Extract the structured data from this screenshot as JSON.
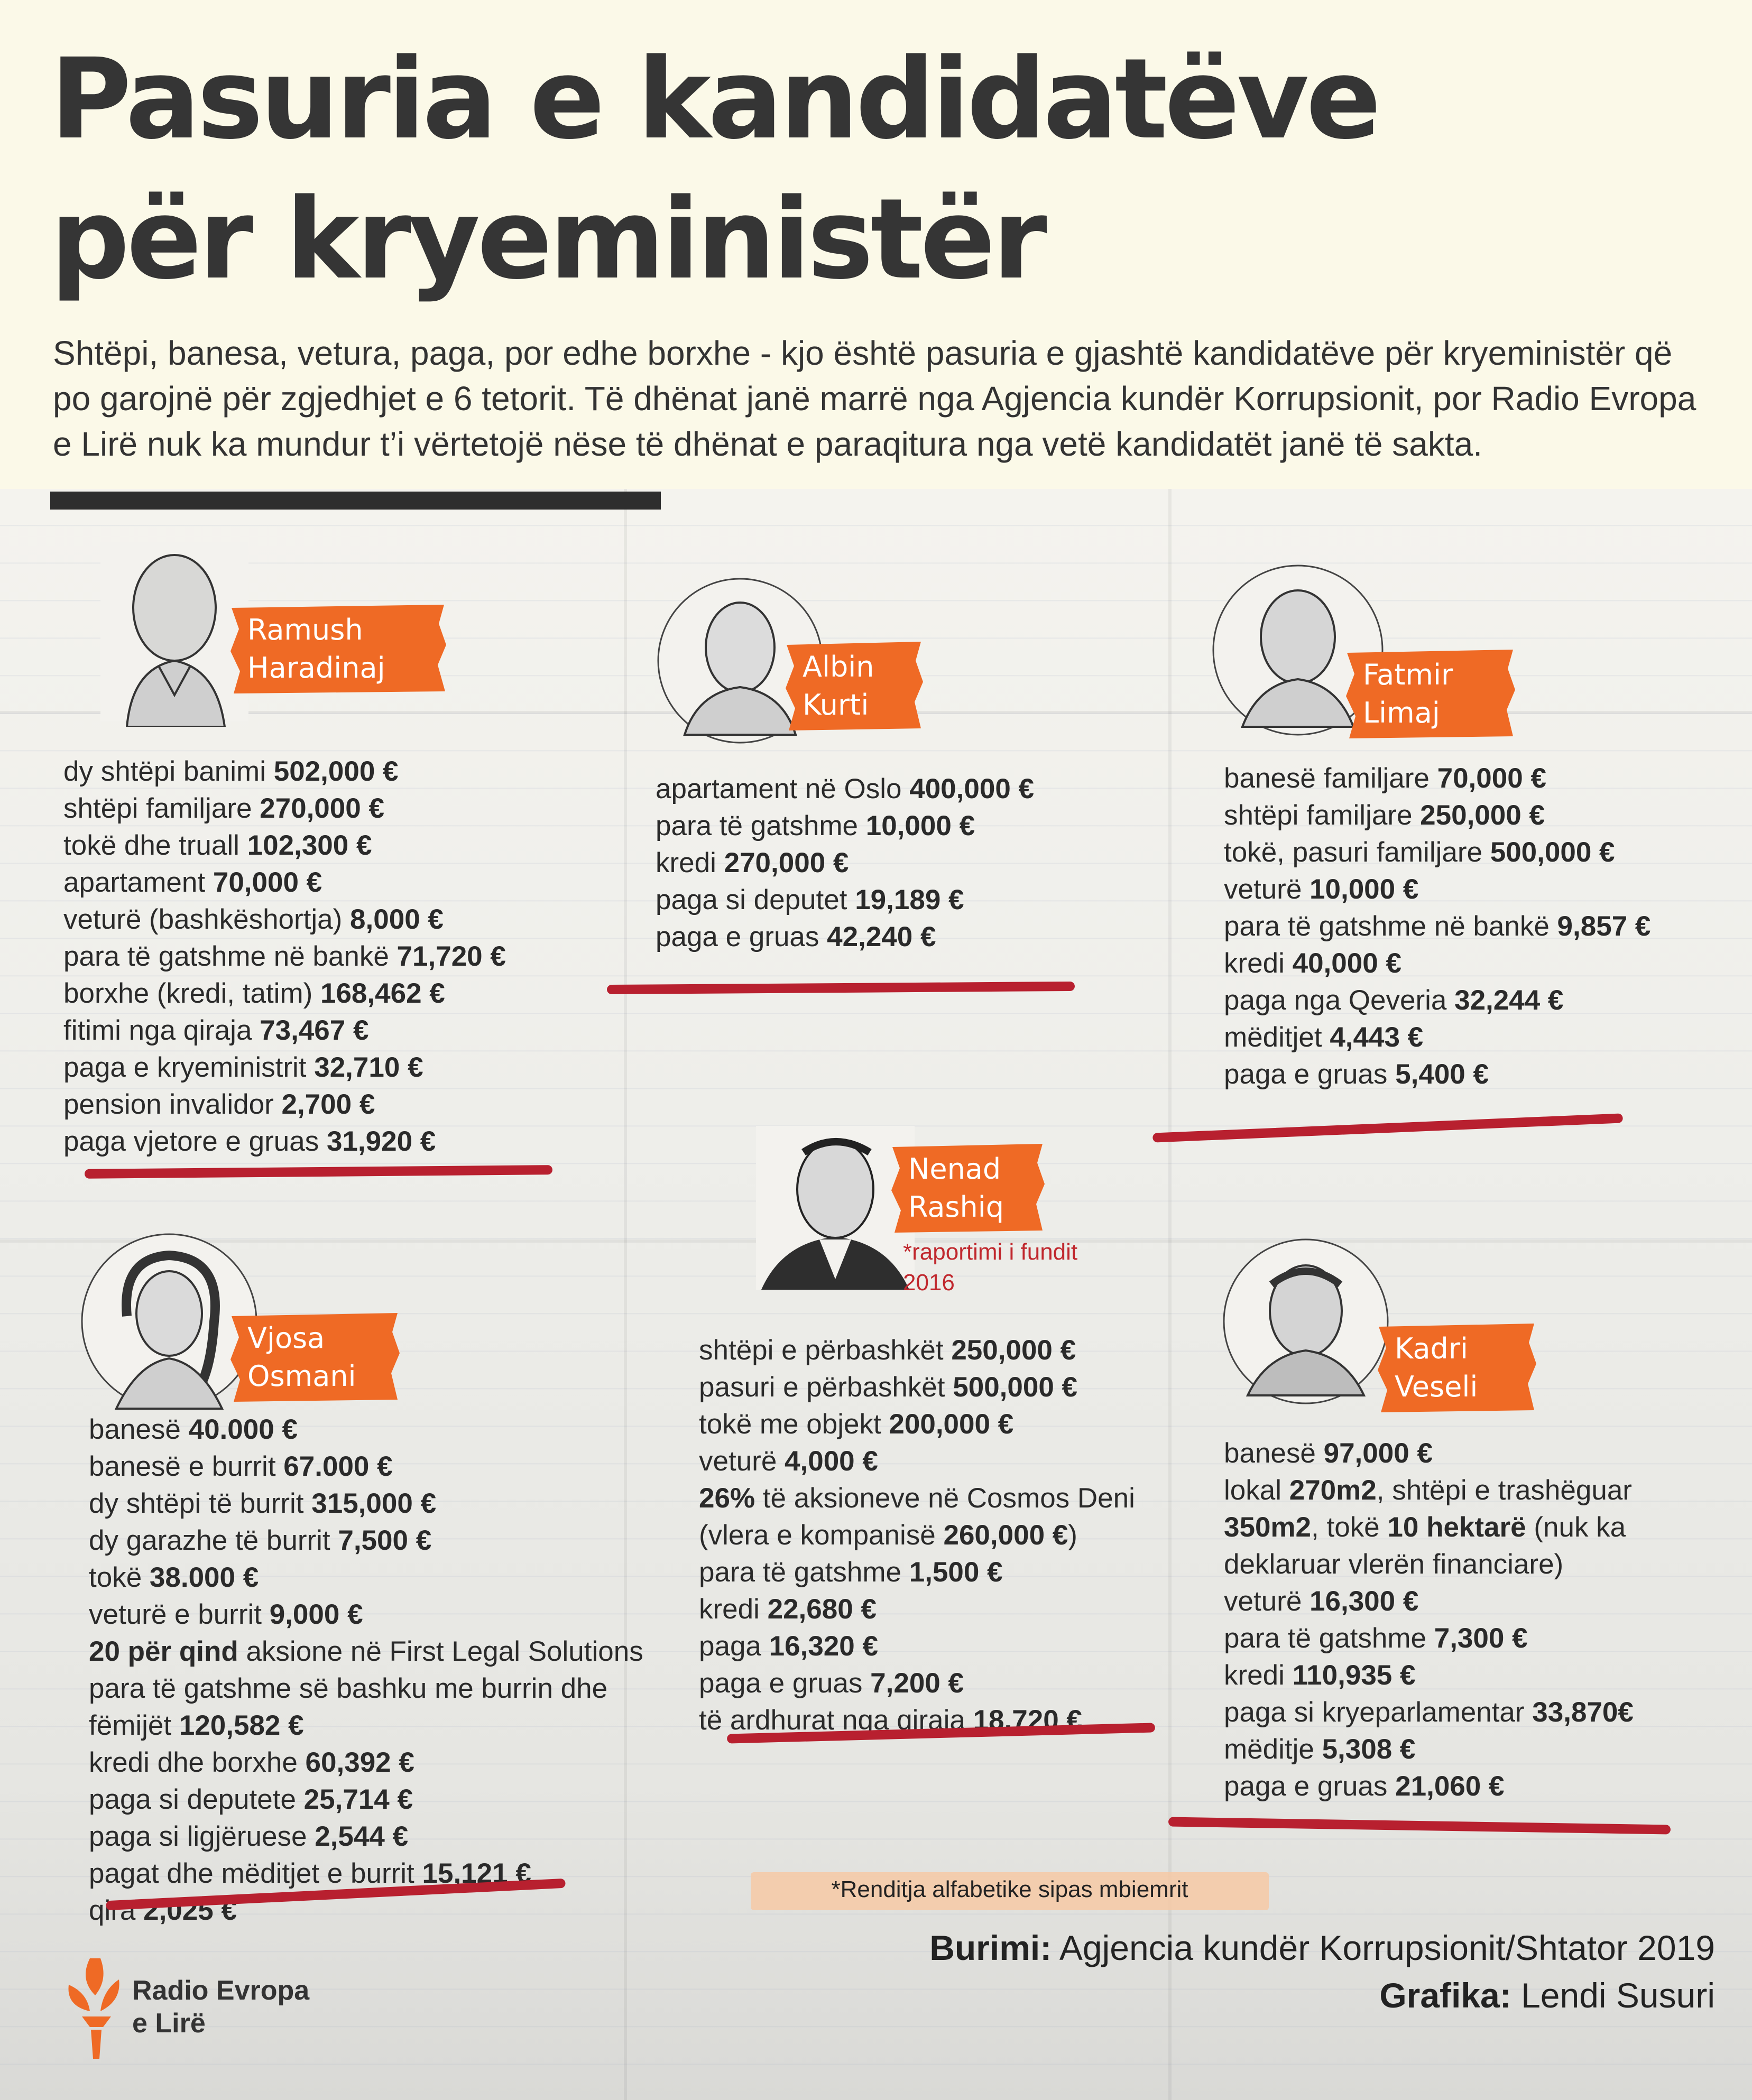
{
  "header": {
    "title_lines": [
      "Pasuria e kandidatëve",
      "për kryeministër"
    ],
    "intro": "Shtëpi, banesa, vetura, paga, por edhe borxhe - kjo është pasuria e gjashtë kandidatëve për kryeministër që po garojnë për zgjedhjet e 6 tetorit. Të dhënat janë marrë nga Agjencia kundër Korrupsionit, por Radio Evropa e Lirë nuk ka mundur t’i vërtetojë nëse të dhënat e paraqitura nga vetë kandidatët janë të sakta."
  },
  "candidates": [
    {
      "name_lines": [
        "Ramush",
        "Haradinaj"
      ],
      "items": [
        [
          {
            "t": "dy shtëpi banimi "
          },
          {
            "t": "502,000 €",
            "b": true
          }
        ],
        [
          {
            "t": "shtëpi familjare "
          },
          {
            "t": "270,000 €",
            "b": true
          }
        ],
        [
          {
            "t": "tokë dhe truall "
          },
          {
            "t": "102,300 €",
            "b": true
          }
        ],
        [
          {
            "t": "apartament "
          },
          {
            "t": "70,000 €",
            "b": true
          }
        ],
        [
          {
            "t": "veturë (bashkëshortja) "
          },
          {
            "t": "8,000 €",
            "b": true
          }
        ],
        [
          {
            "t": "para të gatshme në bankë "
          },
          {
            "t": "71,720 €",
            "b": true
          }
        ],
        [
          {
            "t": "borxhe (kredi, tatim)  "
          },
          {
            "t": "168,462 €",
            "b": true
          }
        ],
        [
          {
            "t": "fitimi nga qiraja "
          },
          {
            "t": "73,467 €",
            "b": true
          }
        ],
        [
          {
            "t": "paga e kryeministrit "
          },
          {
            "t": "32,710 €",
            "b": true
          }
        ],
        [
          {
            "t": "pension invalidor "
          },
          {
            "t": "2,700 €",
            "b": true
          }
        ],
        [
          {
            "t": "paga vjetore e gruas "
          },
          {
            "t": "31,920 €",
            "b": true
          }
        ]
      ]
    },
    {
      "name_lines": [
        "Albin",
        "Kurti"
      ],
      "items": [
        [
          {
            "t": "apartament në Oslo "
          },
          {
            "t": "400,000 €",
            "b": true
          }
        ],
        [
          {
            "t": "para të gatshme "
          },
          {
            "t": "10,000 €",
            "b": true
          }
        ],
        [
          {
            "t": "kredi "
          },
          {
            "t": "270,000 €",
            "b": true
          }
        ],
        [
          {
            "t": "paga si deputet "
          },
          {
            "t": "19,189 €",
            "b": true
          }
        ],
        [
          {
            "t": "paga e gruas "
          },
          {
            "t": "42,240 €",
            "b": true
          }
        ]
      ]
    },
    {
      "name_lines": [
        "Fatmir",
        "Limaj"
      ],
      "items": [
        [
          {
            "t": "banesë familjare "
          },
          {
            "t": "70,000 €",
            "b": true
          }
        ],
        [
          {
            "t": "shtëpi familjare "
          },
          {
            "t": "250,000 €",
            "b": true
          }
        ],
        [
          {
            "t": "tokë, pasuri familjare "
          },
          {
            "t": "500,000 €",
            "b": true
          }
        ],
        [
          {
            "t": "veturë "
          },
          {
            "t": "10,000 €",
            "b": true
          }
        ],
        [
          {
            "t": "para të gatshme në bankë "
          },
          {
            "t": "9,857 €",
            "b": true
          }
        ],
        [
          {
            "t": "kredi "
          },
          {
            "t": "40,000 €",
            "b": true
          }
        ],
        [
          {
            "t": "paga nga Qeveria "
          },
          {
            "t": "32,244 €",
            "b": true
          }
        ],
        [
          {
            "t": "mëditjet "
          },
          {
            "t": "4,443 €",
            "b": true
          }
        ],
        [
          {
            "t": "paga e gruas "
          },
          {
            "t": "5,400 €",
            "b": true
          }
        ]
      ]
    },
    {
      "name_lines": [
        "Vjosa",
        "Osmani"
      ],
      "items": [
        [
          {
            "t": "banesë "
          },
          {
            "t": "40.000 €",
            "b": true
          }
        ],
        [
          {
            "t": "banesë e burrit "
          },
          {
            "t": "67.000 €",
            "b": true
          }
        ],
        [
          {
            "t": "dy shtëpi të burrit "
          },
          {
            "t": "315,000 €",
            "b": true
          }
        ],
        [
          {
            "t": "dy garazhe të burrit "
          },
          {
            "t": "7,500 €",
            "b": true
          }
        ],
        [
          {
            "t": "tokë "
          },
          {
            "t": "38.000 €",
            "b": true
          }
        ],
        [
          {
            "t": "veturë e burrit "
          },
          {
            "t": "9,000 €",
            "b": true
          }
        ],
        [
          {
            "t": "20 për qind",
            "b": true
          },
          {
            "t": " aksione në First Legal Solutions"
          }
        ],
        [
          {
            "t": "para të gatshme së bashku me burrin dhe"
          }
        ],
        [
          {
            "t": "fëmijët "
          },
          {
            "t": "120,582 €",
            "b": true
          }
        ],
        [
          {
            "t": "kredi dhe borxhe "
          },
          {
            "t": "60,392 €",
            "b": true
          }
        ],
        [
          {
            "t": "paga si deputete "
          },
          {
            "t": "25,714 €",
            "b": true
          }
        ],
        [
          {
            "t": "paga si ligjëruese "
          },
          {
            "t": "2,544 €",
            "b": true
          }
        ],
        [
          {
            "t": "pagat dhe mëditjet e burrit "
          },
          {
            "t": "15,121 €",
            "b": true
          }
        ],
        [
          {
            "t": "qira "
          },
          {
            "t": "2,025 €",
            "b": true
          }
        ]
      ]
    },
    {
      "name_lines": [
        "Nenad",
        "Rashiq"
      ],
      "footnote_lines": [
        "*raportimi i fundit",
        "2016"
      ],
      "items": [
        [
          {
            "t": "shtëpi e përbashkët "
          },
          {
            "t": "250,000 €",
            "b": true
          }
        ],
        [
          {
            "t": "pasuri e përbashkët "
          },
          {
            "t": "500,000 €",
            "b": true
          }
        ],
        [
          {
            "t": "tokë me objekt "
          },
          {
            "t": "200,000 €",
            "b": true
          }
        ],
        [
          {
            "t": "veturë "
          },
          {
            "t": "4,000 €",
            "b": true
          }
        ],
        [
          {
            "t": "26%",
            "b": true
          },
          {
            "t": " të aksioneve në Cosmos Deni"
          }
        ],
        [
          {
            "t": "(vlera e kompanisë "
          },
          {
            "t": "260,000 €",
            "b": true
          },
          {
            "t": ")"
          }
        ],
        [
          {
            "t": "para të gatshme "
          },
          {
            "t": "1,500 €",
            "b": true
          }
        ],
        [
          {
            "t": "kredi "
          },
          {
            "t": "22,680 €",
            "b": true
          }
        ],
        [
          {
            "t": "paga "
          },
          {
            "t": "16,320 €",
            "b": true
          }
        ],
        [
          {
            "t": "paga e gruas "
          },
          {
            "t": "7,200 €",
            "b": true
          }
        ],
        [
          {
            "t": "të ardhurat nga qiraja "
          },
          {
            "t": "18,720 €",
            "b": true
          }
        ]
      ]
    },
    {
      "name_lines": [
        "Kadri",
        "Veseli"
      ],
      "items": [
        [
          {
            "t": "banesë "
          },
          {
            "t": "97,000 €",
            "b": true
          }
        ],
        [
          {
            "t": "lokal "
          },
          {
            "t": "270m2",
            "b": true
          },
          {
            "t": ", shtëpi e trashëguar"
          }
        ],
        [
          {
            "t": "350m2",
            "b": true
          },
          {
            "t": ", tokë "
          },
          {
            "t": "10 hektarë",
            "b": true
          },
          {
            "t": " (nuk ka"
          }
        ],
        [
          {
            "t": "deklaruar vlerën financiare)"
          }
        ],
        [
          {
            "t": "veturë "
          },
          {
            "t": "16,300 €",
            "b": true
          }
        ],
        [
          {
            "t": "para të gatshme "
          },
          {
            "t": "7,300 €",
            "b": true
          }
        ],
        [
          {
            "t": "kredi "
          },
          {
            "t": "110,935 €",
            "b": true
          }
        ],
        [
          {
            "t": "paga si kryeparlamentar "
          },
          {
            "t": "33,870€",
            "b": true
          }
        ],
        [
          {
            "t": "mëditje "
          },
          {
            "t": "5,308 €",
            "b": true
          }
        ],
        [
          {
            "t": "paga e gruas "
          },
          {
            "t": "21,060 €",
            "b": true
          }
        ]
      ]
    }
  ],
  "alphabetical_note": "*Renditja alfabetike sipas mbiemrit",
  "credits": {
    "source_label": "Burimi:",
    "source_text": " Agjencia kundër Korrupsionit/Shtator 2019",
    "graphics_label": "Grafika:",
    "graphics_text": " Lendi Susuri"
  },
  "logo": {
    "text_lines": [
      "Radio Evropa",
      "e Lirë"
    ]
  },
  "colors": {
    "tag_orange": "#ef6a25",
    "underline_red": "#b8202f",
    "title_dark": "#353535",
    "background": "#fbf9e8"
  },
  "icons": [
    "portrait-sketch",
    "brush-stroke-tag",
    "torch-logo"
  ]
}
